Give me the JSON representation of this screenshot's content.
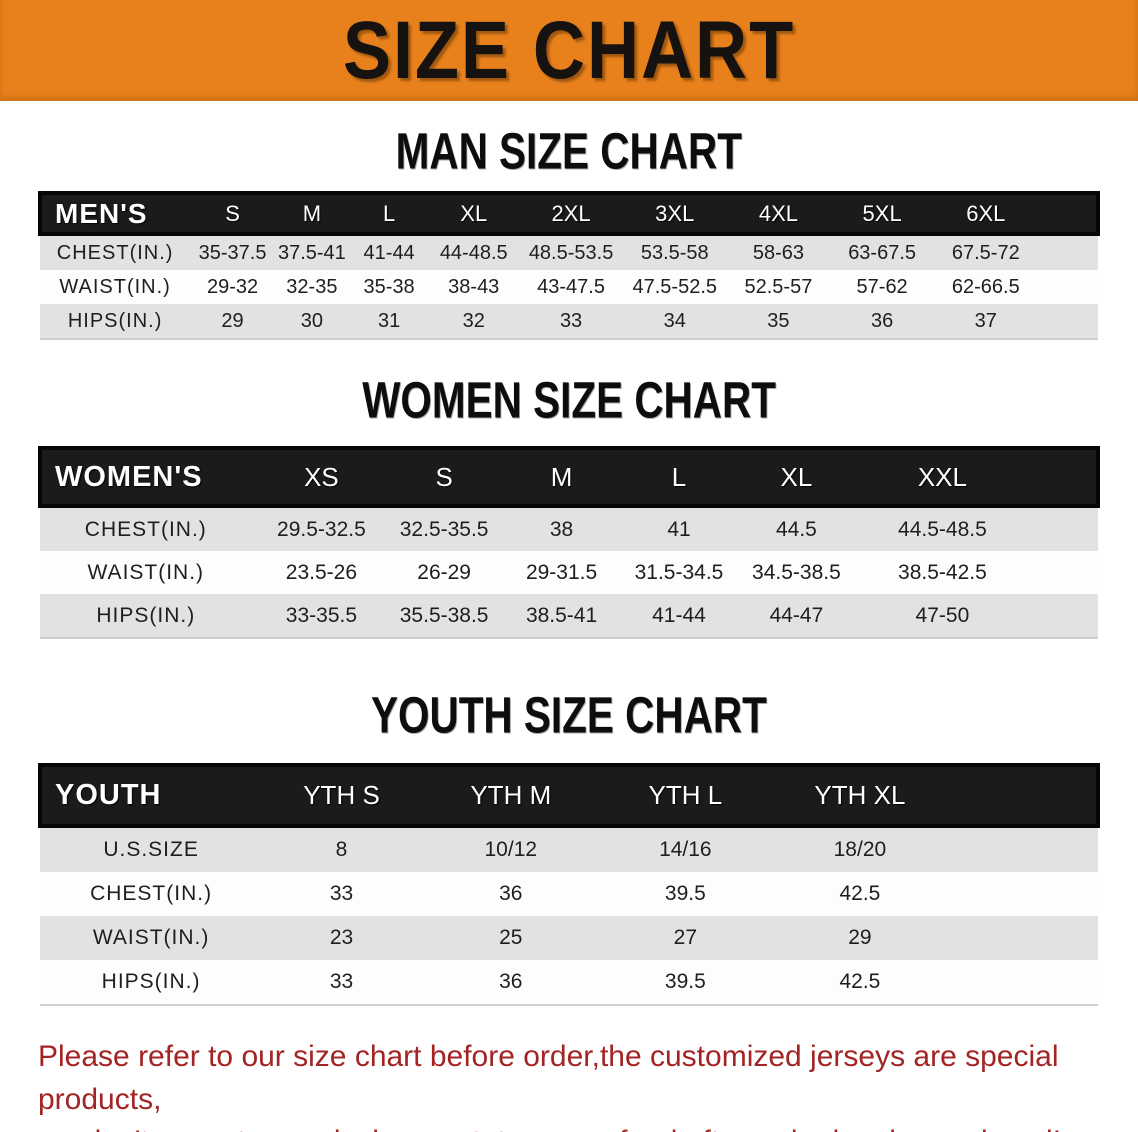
{
  "banner": {
    "title": "SIZE CHART"
  },
  "colors": {
    "banner_bg": "#e8811c",
    "band_bg": "#1b1b1b",
    "stripe_gray": "#e2e2e2",
    "disclaimer_red": "#a32424"
  },
  "sections": [
    {
      "heading": "MAN SIZE CHART",
      "table": {
        "header_label": "MEN'S",
        "columns": [
          "S",
          "M",
          "L",
          "XL",
          "2XL",
          "3XL",
          "4XL",
          "5XL",
          "6XL"
        ],
        "rows": [
          {
            "label": "CHEST(IN.)",
            "values": [
              "35-37.5",
              "37.5-41",
              "41-44",
              "44-48.5",
              "48.5-53.5",
              "53.5-58",
              "58-63",
              "63-67.5",
              "67.5-72"
            ]
          },
          {
            "label": "WAIST(IN.)",
            "values": [
              "29-32",
              "32-35",
              "35-38",
              "38-43",
              "43-47.5",
              "47.5-52.5",
              "52.5-57",
              "57-62",
              "62-66.5"
            ]
          },
          {
            "label": "HIPS(IN.)",
            "values": [
              "29",
              "30",
              "31",
              "32",
              "33",
              "34",
              "35",
              "36",
              "37"
            ]
          }
        ]
      }
    },
    {
      "heading": "WOMEN SIZE CHART",
      "table": {
        "header_label": "WOMEN'S",
        "columns": [
          "XS",
          "S",
          "M",
          "L",
          "XL",
          "XXL"
        ],
        "rows": [
          {
            "label": "CHEST(IN.)",
            "values": [
              "29.5-32.5",
              "32.5-35.5",
              "38",
              "41",
              "44.5",
              "44.5-48.5"
            ]
          },
          {
            "label": "WAIST(IN.)",
            "values": [
              "23.5-26",
              "26-29",
              "29-31.5",
              "31.5-34.5",
              "34.5-38.5",
              "38.5-42.5"
            ]
          },
          {
            "label": "HIPS(IN.)",
            "values": [
              "33-35.5",
              "35.5-38.5",
              "38.5-41",
              "41-44",
              "44-47",
              "47-50"
            ]
          }
        ]
      }
    },
    {
      "heading": "YOUTH SIZE CHART",
      "table": {
        "header_label": "YOUTH",
        "columns": [
          "YTH S",
          "YTH M",
          "YTH L",
          "YTH XL"
        ],
        "rows": [
          {
            "label": "U.S.SIZE",
            "values": [
              "8",
              "10/12",
              "14/16",
              "18/20"
            ]
          },
          {
            "label": "CHEST(IN.)",
            "values": [
              "33",
              "36",
              "39.5",
              "42.5"
            ]
          },
          {
            "label": "WAIST(IN.)",
            "values": [
              "23",
              "25",
              "27",
              "29"
            ]
          },
          {
            "label": "HIPS(IN.)",
            "values": [
              "33",
              "36",
              "39.5",
              "42.5"
            ]
          }
        ]
      }
    }
  ],
  "disclaimer": {
    "line1": "Please refer to our size chart before order,the customized jerseys are special products,",
    "line2": "we don't accept cancel, change, teturn or refund after order has been placed!"
  }
}
